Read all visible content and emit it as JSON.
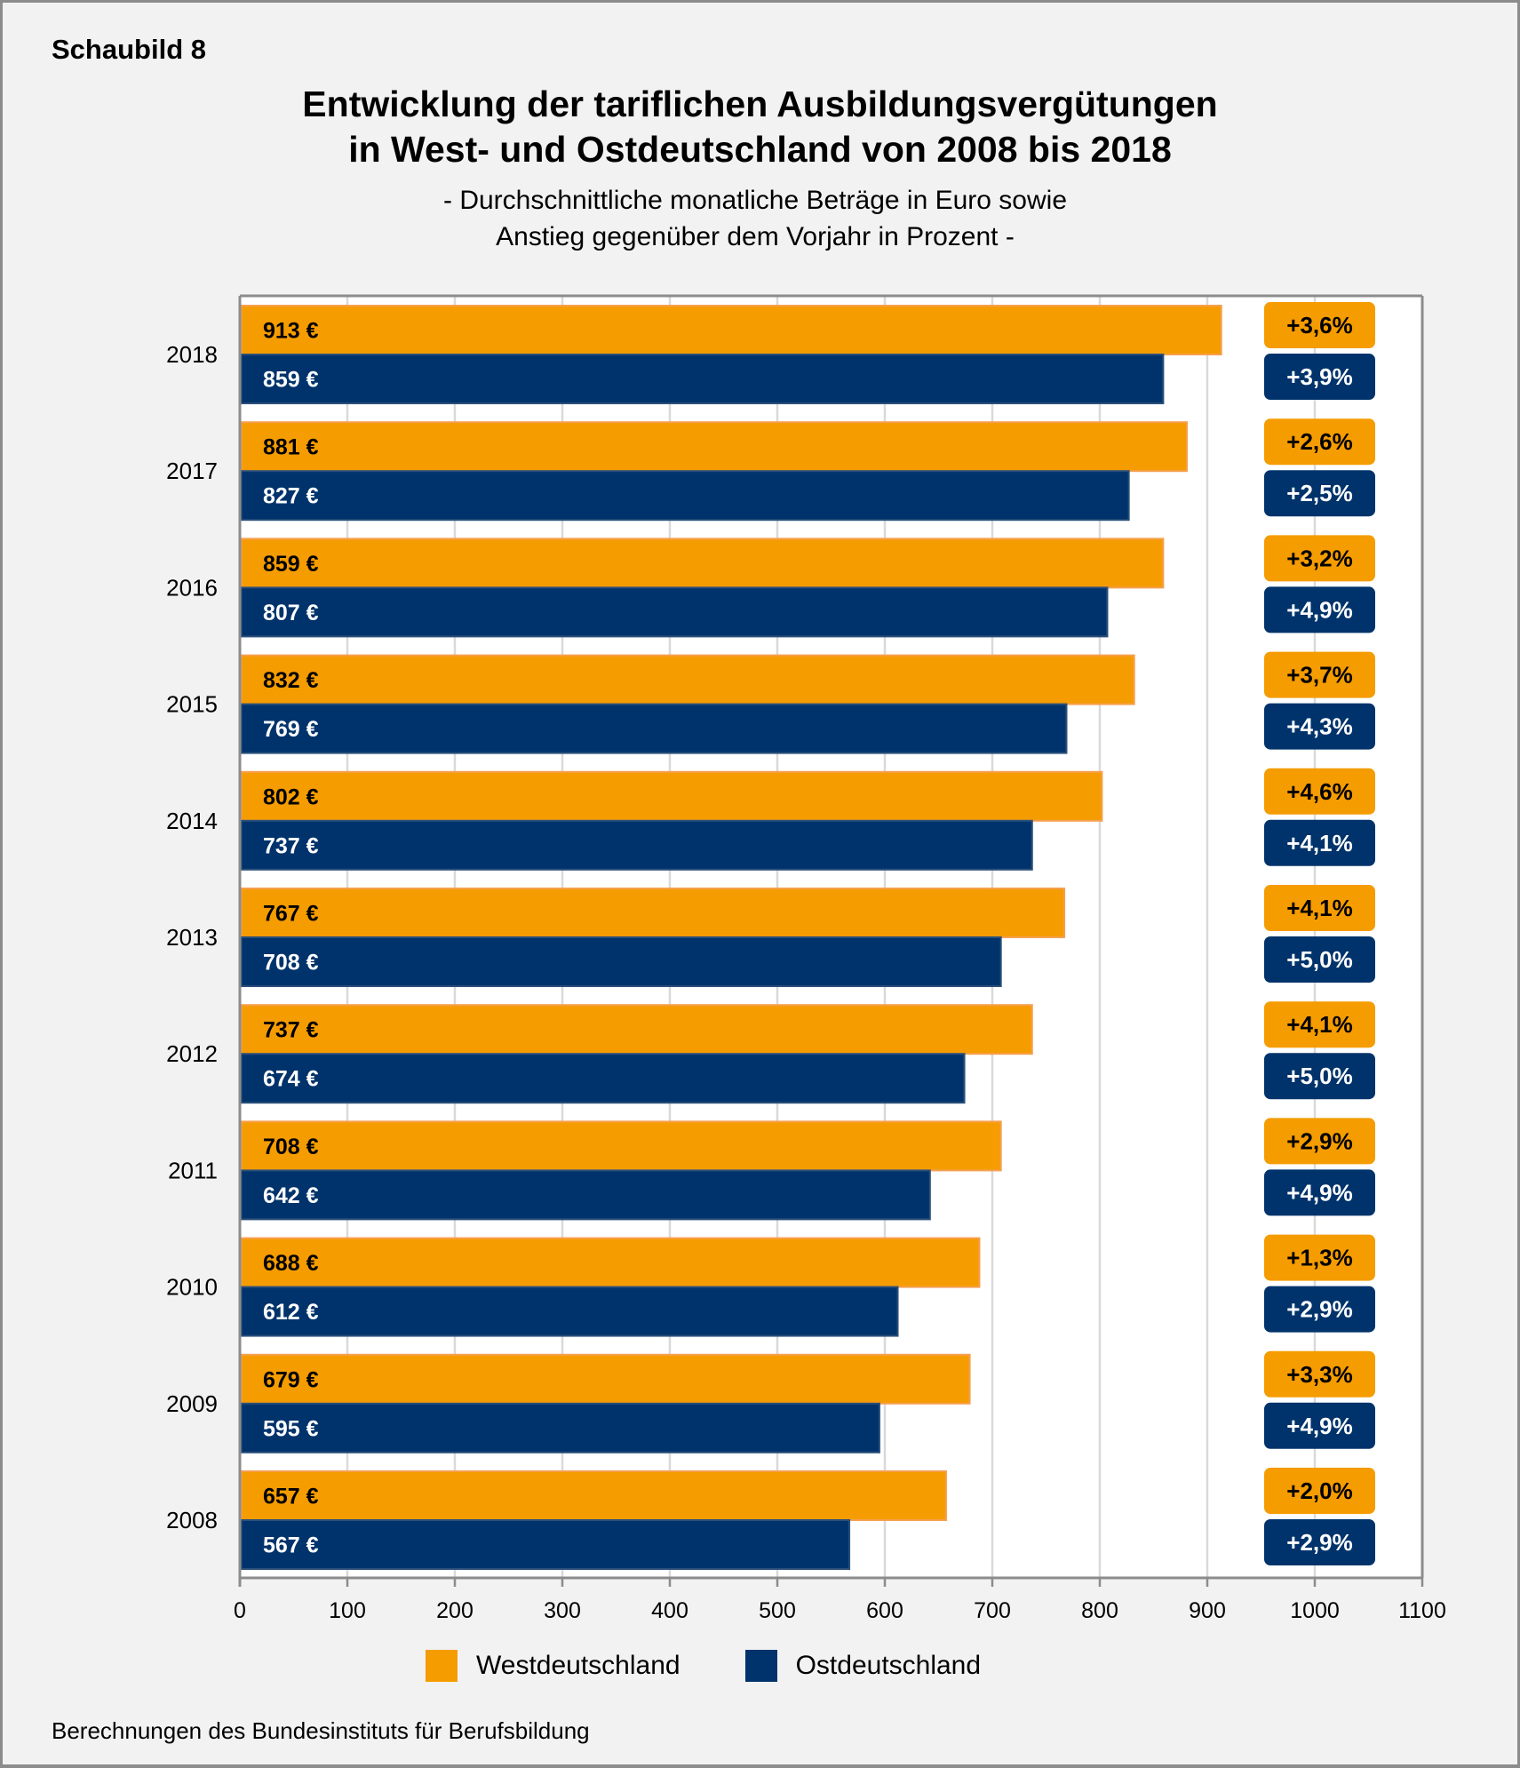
{
  "figure_label": "Schaubild 8",
  "footnote": "Berechnungen des Bundesinstituts für Berufsbildung",
  "colors": {
    "west": "#f59c00",
    "west_outline": "#f5a04f",
    "east": "#00336b",
    "east_outline": "#2a4f7a",
    "grid": "#d9d9d9",
    "axis": "#8c8c8c",
    "plot_bg": "#ffffff",
    "page_bg": "#f2f2f2"
  },
  "chart_data": {
    "type": "bar",
    "orientation": "horizontal",
    "title": "Entwicklung der tariflichen Ausbildungsvergütungen in West- und Ostdeutschland von 2008 bis 2018",
    "title_lines": [
      "Entwicklung der tariflichen Ausbildungsvergütungen",
      "in West- und Ostdeutschland von 2008 bis 2018"
    ],
    "subtitle_lines": [
      "- Durchschnittliche monatliche Beträge in Euro sowie",
      "Anstieg gegenüber dem Vorjahr in Prozent -"
    ],
    "xlabel": "",
    "ylabel": "",
    "xlim": [
      0,
      1100
    ],
    "xticks": [
      0,
      100,
      200,
      300,
      400,
      500,
      600,
      700,
      800,
      900,
      1000,
      1100
    ],
    "grid": true,
    "legend_position": "bottom-center",
    "categories": [
      "2018",
      "2017",
      "2016",
      "2015",
      "2014",
      "2013",
      "2012",
      "2011",
      "2010",
      "2009",
      "2008"
    ],
    "series": [
      {
        "name": "Westdeutschland",
        "values": [
          913,
          881,
          859,
          832,
          802,
          767,
          737,
          708,
          688,
          679,
          657
        ],
        "value_labels": [
          "913 €",
          "881 €",
          "859 €",
          "832 €",
          "802 €",
          "767 €",
          "737 €",
          "708 €",
          "688 €",
          "679 €",
          "657 €"
        ],
        "change_labels": [
          "+3,6%",
          "+2,6%",
          "+3,2%",
          "+3,7%",
          "+4,6%",
          "+4,1%",
          "+4,1%",
          "+2,9%",
          "+1,3%",
          "+3,3%",
          "+2,0%"
        ],
        "change_percent": [
          3.6,
          2.6,
          3.2,
          3.7,
          4.6,
          4.1,
          4.1,
          2.9,
          1.3,
          3.3,
          2.0
        ]
      },
      {
        "name": "Ostdeutschland",
        "values": [
          859,
          827,
          807,
          769,
          737,
          708,
          674,
          642,
          612,
          595,
          567
        ],
        "value_labels": [
          "859 €",
          "827 €",
          "807 €",
          "769 €",
          "737 €",
          "708 €",
          "674 €",
          "642 €",
          "612 €",
          "595 €",
          "567 €"
        ],
        "change_labels": [
          "+3,9%",
          "+2,5%",
          "+4,9%",
          "+4,3%",
          "+4,1%",
          "+5,0%",
          "+5,0%",
          "+4,9%",
          "+2,9%",
          "+4,9%",
          "+2,9%"
        ],
        "change_percent": [
          3.9,
          2.5,
          4.9,
          4.3,
          4.1,
          5.0,
          5.0,
          4.9,
          2.9,
          4.9,
          2.9
        ]
      }
    ]
  }
}
